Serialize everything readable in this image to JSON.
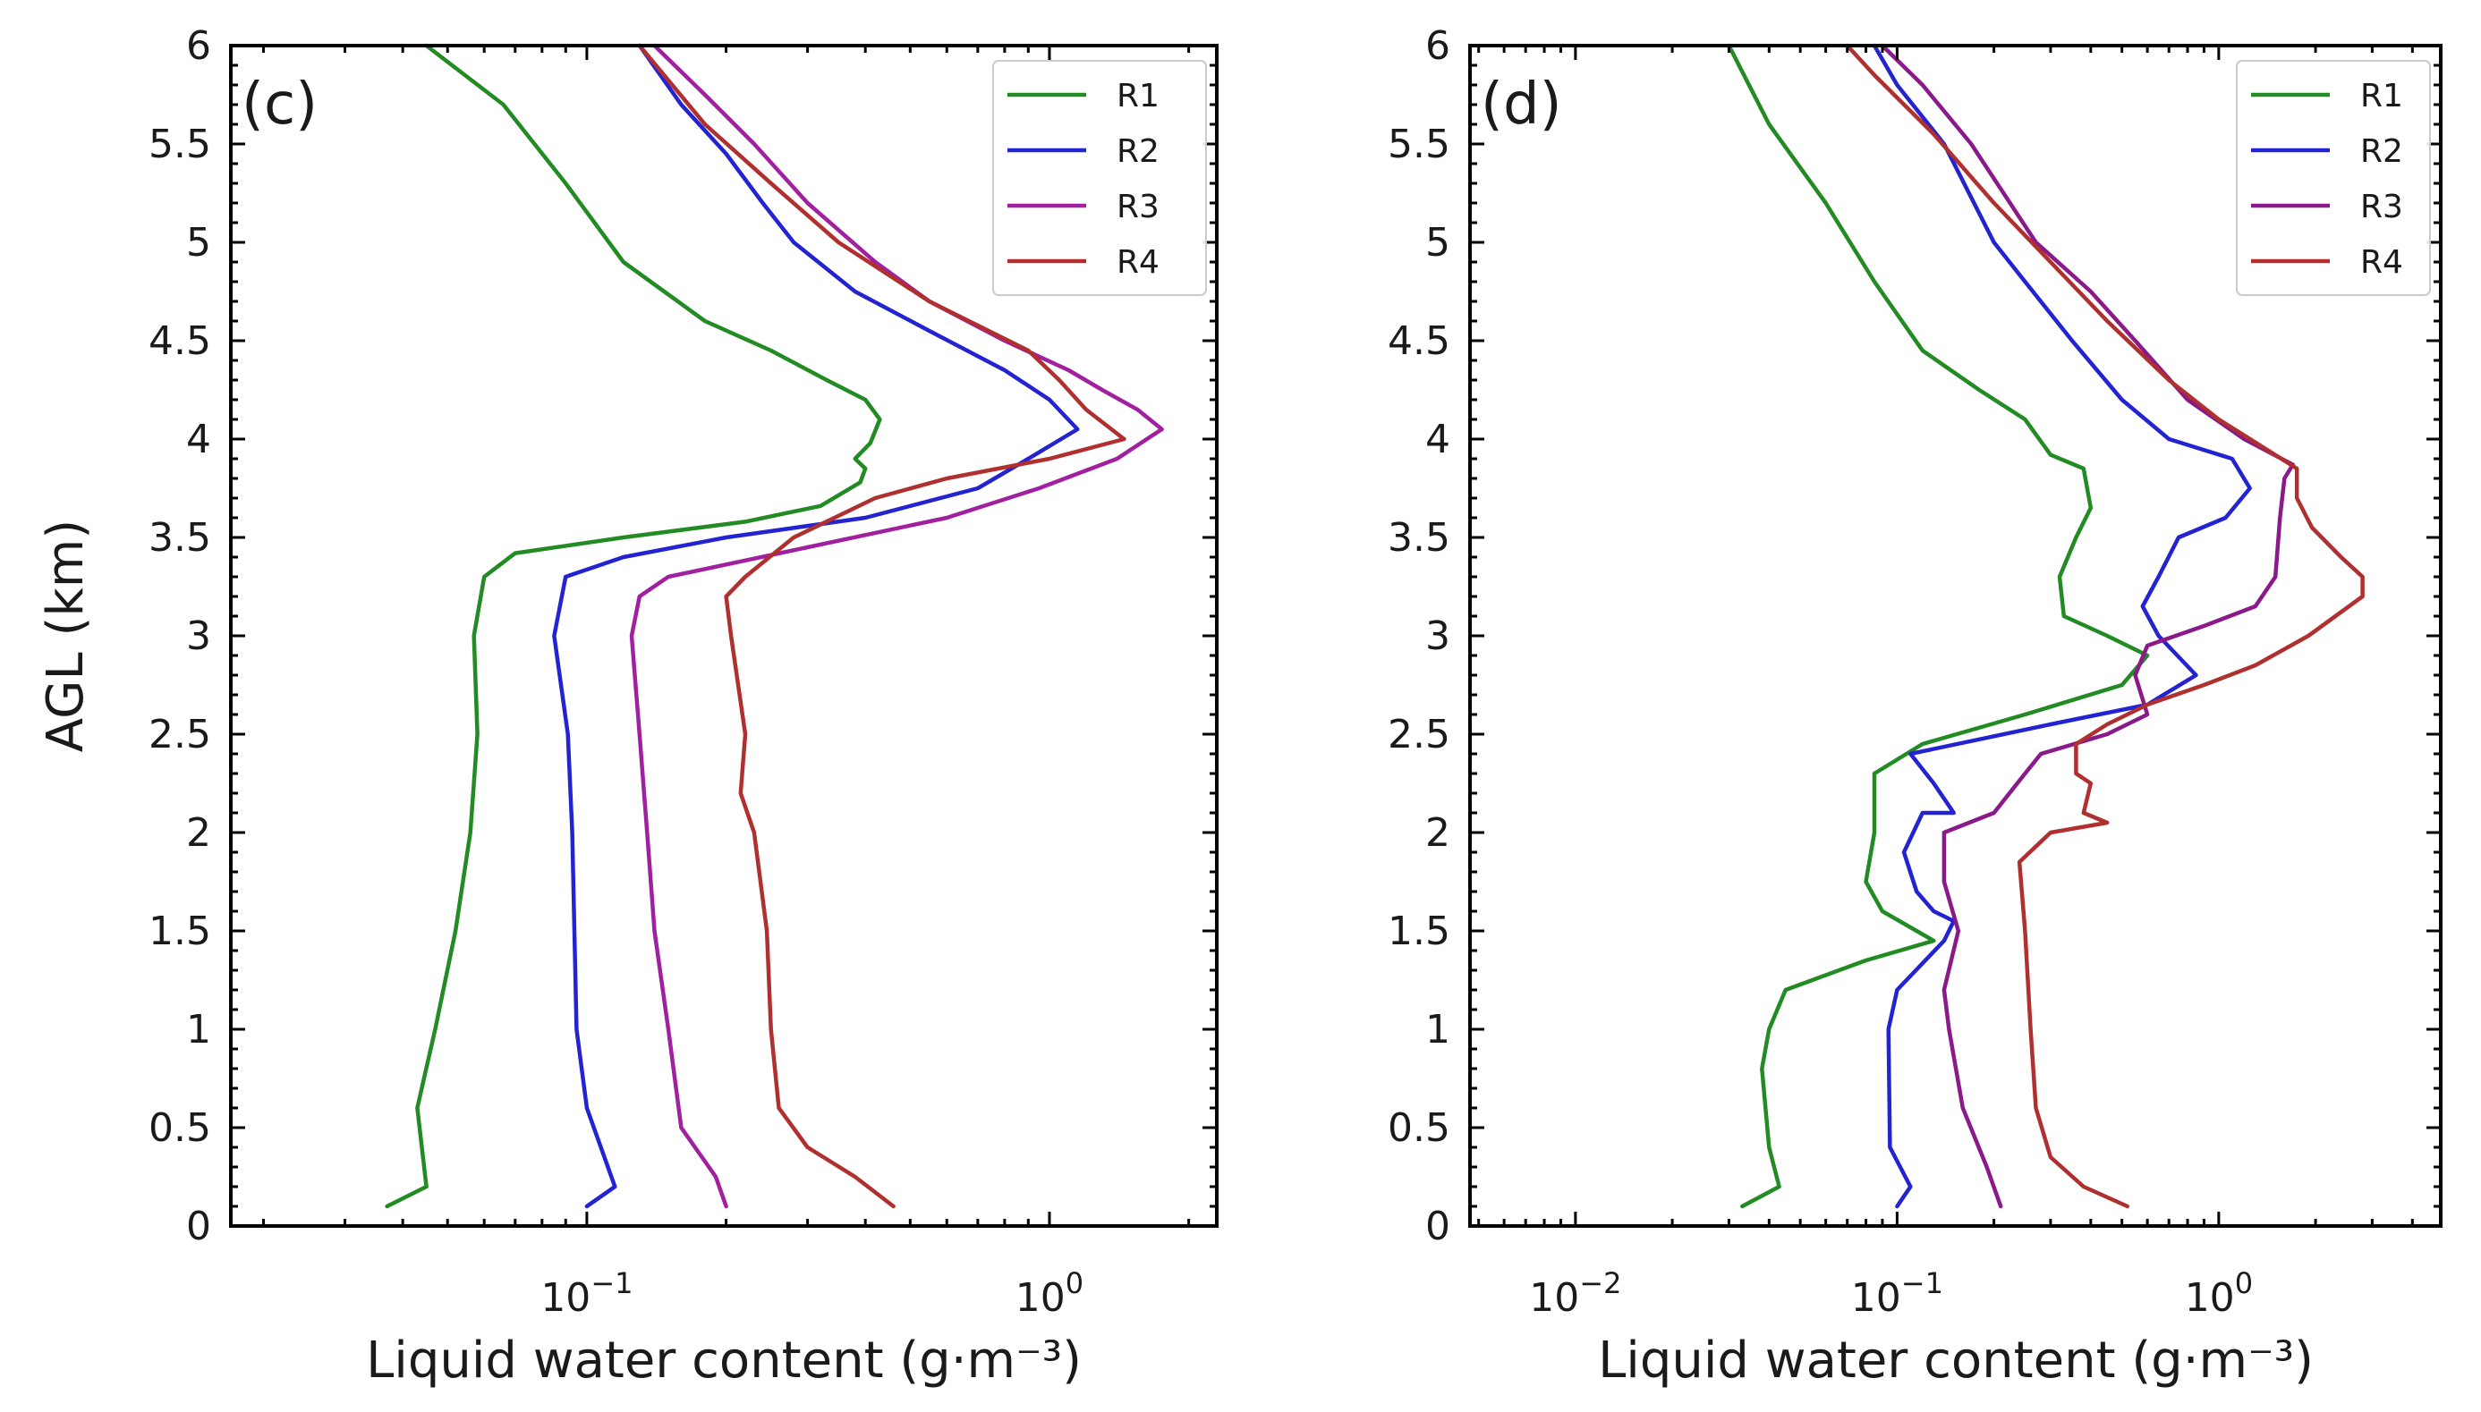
{
  "chart_data": [
    {
      "type": "line",
      "panel_label": "(c)",
      "title": "",
      "xlabel": "Liquid water content (g·m⁻³)",
      "ylabel": "AGL (km)",
      "xscale": "log",
      "xlim": [
        0.017,
        2.3
      ],
      "ylim": [
        0,
        6
      ],
      "x_tick_labels": [
        {
          "value": 0.1,
          "base": "10",
          "exp": "−1"
        },
        {
          "value": 1,
          "base": "10",
          "exp": "0"
        }
      ],
      "y_ticks": [
        0,
        0.5,
        1,
        1.5,
        2,
        2.5,
        3,
        3.5,
        4,
        4.5,
        5,
        5.5,
        6
      ],
      "y_tick_labels": [
        "0",
        "0.5",
        "1",
        "1.5",
        "2",
        "2.5",
        "3",
        "3.5",
        "4",
        "4.5",
        "5",
        "5.5",
        "6"
      ],
      "legend_position": "top-right",
      "series": [
        {
          "name": "R1",
          "color": "#238b23",
          "points": [
            [
              0.037,
              0.1
            ],
            [
              0.045,
              0.2
            ],
            [
              0.043,
              0.6
            ],
            [
              0.047,
              1.0
            ],
            [
              0.052,
              1.5
            ],
            [
              0.056,
              2.0
            ],
            [
              0.058,
              2.5
            ],
            [
              0.057,
              3.0
            ],
            [
              0.06,
              3.3
            ],
            [
              0.07,
              3.42
            ],
            [
              0.12,
              3.5
            ],
            [
              0.22,
              3.58
            ],
            [
              0.32,
              3.66
            ],
            [
              0.39,
              3.78
            ],
            [
              0.4,
              3.85
            ],
            [
              0.38,
              3.9
            ],
            [
              0.41,
              3.98
            ],
            [
              0.43,
              4.1
            ],
            [
              0.4,
              4.2
            ],
            [
              0.33,
              4.3
            ],
            [
              0.25,
              4.45
            ],
            [
              0.18,
              4.6
            ],
            [
              0.12,
              4.9
            ],
            [
              0.09,
              5.3
            ],
            [
              0.066,
              5.7
            ],
            [
              0.045,
              6.0
            ]
          ]
        },
        {
          "name": "R2",
          "color": "#2323d2",
          "points": [
            [
              0.1,
              0.1
            ],
            [
              0.115,
              0.2
            ],
            [
              0.1,
              0.6
            ],
            [
              0.095,
              1.0
            ],
            [
              0.093,
              2.0
            ],
            [
              0.091,
              2.5
            ],
            [
              0.085,
              3.0
            ],
            [
              0.09,
              3.3
            ],
            [
              0.12,
              3.4
            ],
            [
              0.2,
              3.5
            ],
            [
              0.4,
              3.6
            ],
            [
              0.7,
              3.75
            ],
            [
              0.9,
              3.9
            ],
            [
              1.15,
              4.05
            ],
            [
              1.0,
              4.2
            ],
            [
              0.8,
              4.35
            ],
            [
              0.55,
              4.55
            ],
            [
              0.38,
              4.75
            ],
            [
              0.28,
              5.0
            ],
            [
              0.24,
              5.2
            ],
            [
              0.2,
              5.45
            ],
            [
              0.16,
              5.7
            ],
            [
              0.13,
              6.0
            ]
          ]
        },
        {
          "name": "R3",
          "color": "#a020a0",
          "points": [
            [
              0.2,
              0.1
            ],
            [
              0.19,
              0.25
            ],
            [
              0.16,
              0.5
            ],
            [
              0.15,
              1.0
            ],
            [
              0.14,
              1.5
            ],
            [
              0.135,
              2.0
            ],
            [
              0.13,
              2.5
            ],
            [
              0.125,
              3.0
            ],
            [
              0.13,
              3.2
            ],
            [
              0.15,
              3.3
            ],
            [
              0.3,
              3.45
            ],
            [
              0.6,
              3.6
            ],
            [
              0.95,
              3.75
            ],
            [
              1.4,
              3.9
            ],
            [
              1.75,
              4.05
            ],
            [
              1.55,
              4.15
            ],
            [
              1.3,
              4.25
            ],
            [
              1.1,
              4.35
            ],
            [
              0.8,
              4.5
            ],
            [
              0.55,
              4.7
            ],
            [
              0.42,
              4.9
            ],
            [
              0.3,
              5.2
            ],
            [
              0.23,
              5.5
            ],
            [
              0.18,
              5.75
            ],
            [
              0.14,
              6.0
            ]
          ]
        },
        {
          "name": "R4",
          "color": "#b03030",
          "points": [
            [
              0.46,
              0.1
            ],
            [
              0.38,
              0.25
            ],
            [
              0.3,
              0.4
            ],
            [
              0.26,
              0.6
            ],
            [
              0.25,
              1.0
            ],
            [
              0.245,
              1.5
            ],
            [
              0.23,
              2.0
            ],
            [
              0.215,
              2.2
            ],
            [
              0.22,
              2.5
            ],
            [
              0.205,
              3.0
            ],
            [
              0.2,
              3.2
            ],
            [
              0.22,
              3.3
            ],
            [
              0.28,
              3.5
            ],
            [
              0.42,
              3.7
            ],
            [
              0.6,
              3.8
            ],
            [
              1.0,
              3.9
            ],
            [
              1.45,
              4.0
            ],
            [
              1.2,
              4.15
            ],
            [
              1.05,
              4.3
            ],
            [
              0.9,
              4.45
            ],
            [
              0.55,
              4.7
            ],
            [
              0.35,
              5.0
            ],
            [
              0.25,
              5.3
            ],
            [
              0.18,
              5.6
            ],
            [
              0.13,
              6.0
            ]
          ]
        }
      ]
    },
    {
      "type": "line",
      "panel_label": "(d)",
      "title": "",
      "xlabel": "Liquid water content (g·m⁻³)",
      "ylabel": "",
      "xscale": "log",
      "xlim": [
        0.0047,
        4.9
      ],
      "ylim": [
        0,
        6
      ],
      "x_tick_labels": [
        {
          "value": 0.01,
          "base": "10",
          "exp": "−2"
        },
        {
          "value": 0.1,
          "base": "10",
          "exp": "−1"
        },
        {
          "value": 1,
          "base": "10",
          "exp": "0"
        }
      ],
      "y_ticks": [
        0,
        0.5,
        1,
        1.5,
        2,
        2.5,
        3,
        3.5,
        4,
        4.5,
        5,
        5.5,
        6
      ],
      "y_tick_labels": [
        "0",
        "0.5",
        "1",
        "1.5",
        "2",
        "2.5",
        "3",
        "3.5",
        "4",
        "4.5",
        "5",
        "5.5",
        "6"
      ],
      "legend_position": "top-right",
      "series": [
        {
          "name": "R1",
          "color": "#238b23",
          "points": [
            [
              0.033,
              0.1
            ],
            [
              0.043,
              0.2
            ],
            [
              0.04,
              0.4
            ],
            [
              0.038,
              0.8
            ],
            [
              0.04,
              1.0
            ],
            [
              0.045,
              1.2
            ],
            [
              0.08,
              1.35
            ],
            [
              0.13,
              1.45
            ],
            [
              0.09,
              1.6
            ],
            [
              0.08,
              1.75
            ],
            [
              0.085,
              2.0
            ],
            [
              0.085,
              2.3
            ],
            [
              0.12,
              2.45
            ],
            [
              0.25,
              2.6
            ],
            [
              0.5,
              2.75
            ],
            [
              0.6,
              2.9
            ],
            [
              0.45,
              3.0
            ],
            [
              0.33,
              3.1
            ],
            [
              0.32,
              3.3
            ],
            [
              0.36,
              3.5
            ],
            [
              0.4,
              3.65
            ],
            [
              0.38,
              3.85
            ],
            [
              0.3,
              3.92
            ],
            [
              0.25,
              4.1
            ],
            [
              0.18,
              4.25
            ],
            [
              0.12,
              4.45
            ],
            [
              0.085,
              4.8
            ],
            [
              0.06,
              5.2
            ],
            [
              0.04,
              5.6
            ],
            [
              0.03,
              6.0
            ]
          ]
        },
        {
          "name": "R2",
          "color": "#2323d2",
          "points": [
            [
              0.1,
              0.1
            ],
            [
              0.11,
              0.2
            ],
            [
              0.095,
              0.4
            ],
            [
              0.094,
              1.0
            ],
            [
              0.1,
              1.2
            ],
            [
              0.14,
              1.45
            ],
            [
              0.15,
              1.55
            ],
            [
              0.13,
              1.6
            ],
            [
              0.115,
              1.7
            ],
            [
              0.105,
              1.9
            ],
            [
              0.12,
              2.1
            ],
            [
              0.15,
              2.1
            ],
            [
              0.13,
              2.25
            ],
            [
              0.11,
              2.4
            ],
            [
              0.3,
              2.55
            ],
            [
              0.6,
              2.65
            ],
            [
              0.85,
              2.8
            ],
            [
              0.65,
              3.0
            ],
            [
              0.58,
              3.15
            ],
            [
              0.65,
              3.3
            ],
            [
              0.75,
              3.5
            ],
            [
              1.05,
              3.6
            ],
            [
              1.25,
              3.75
            ],
            [
              1.1,
              3.9
            ],
            [
              0.7,
              4.0
            ],
            [
              0.5,
              4.2
            ],
            [
              0.35,
              4.5
            ],
            [
              0.25,
              4.8
            ],
            [
              0.2,
              5.0
            ],
            [
              0.14,
              5.5
            ],
            [
              0.1,
              5.8
            ],
            [
              0.085,
              6.0
            ]
          ]
        },
        {
          "name": "R3",
          "color": "#8a1a8a",
          "points": [
            [
              0.21,
              0.1
            ],
            [
              0.19,
              0.3
            ],
            [
              0.16,
              0.6
            ],
            [
              0.145,
              1.0
            ],
            [
              0.14,
              1.2
            ],
            [
              0.155,
              1.5
            ],
            [
              0.14,
              1.75
            ],
            [
              0.14,
              2.0
            ],
            [
              0.2,
              2.1
            ],
            [
              0.25,
              2.3
            ],
            [
              0.28,
              2.4
            ],
            [
              0.45,
              2.5
            ],
            [
              0.6,
              2.6
            ],
            [
              0.55,
              2.8
            ],
            [
              0.6,
              2.95
            ],
            [
              0.9,
              3.05
            ],
            [
              1.3,
              3.15
            ],
            [
              1.5,
              3.3
            ],
            [
              1.55,
              3.6
            ],
            [
              1.6,
              3.8
            ],
            [
              1.7,
              3.87
            ],
            [
              1.2,
              4.0
            ],
            [
              0.8,
              4.2
            ],
            [
              0.55,
              4.5
            ],
            [
              0.4,
              4.75
            ],
            [
              0.27,
              5.0
            ],
            [
              0.17,
              5.5
            ],
            [
              0.12,
              5.8
            ],
            [
              0.09,
              6.0
            ]
          ]
        },
        {
          "name": "R4",
          "color": "#b03030",
          "points": [
            [
              0.52,
              0.1
            ],
            [
              0.38,
              0.2
            ],
            [
              0.3,
              0.35
            ],
            [
              0.27,
              0.6
            ],
            [
              0.26,
              1.0
            ],
            [
              0.25,
              1.5
            ],
            [
              0.24,
              1.85
            ],
            [
              0.3,
              2.0
            ],
            [
              0.45,
              2.05
            ],
            [
              0.38,
              2.1
            ],
            [
              0.4,
              2.25
            ],
            [
              0.36,
              2.3
            ],
            [
              0.36,
              2.45
            ],
            [
              0.45,
              2.55
            ],
            [
              0.6,
              2.65
            ],
            [
              0.9,
              2.75
            ],
            [
              1.3,
              2.85
            ],
            [
              1.9,
              3.0
            ],
            [
              2.8,
              3.2
            ],
            [
              2.8,
              3.3
            ],
            [
              2.4,
              3.4
            ],
            [
              1.95,
              3.55
            ],
            [
              1.75,
              3.7
            ],
            [
              1.75,
              3.85
            ],
            [
              1.4,
              3.95
            ],
            [
              1.0,
              4.1
            ],
            [
              0.7,
              4.3
            ],
            [
              0.45,
              4.6
            ],
            [
              0.3,
              4.9
            ],
            [
              0.2,
              5.2
            ],
            [
              0.13,
              5.55
            ],
            [
              0.085,
              5.85
            ],
            [
              0.07,
              6.0
            ]
          ]
        }
      ]
    }
  ]
}
